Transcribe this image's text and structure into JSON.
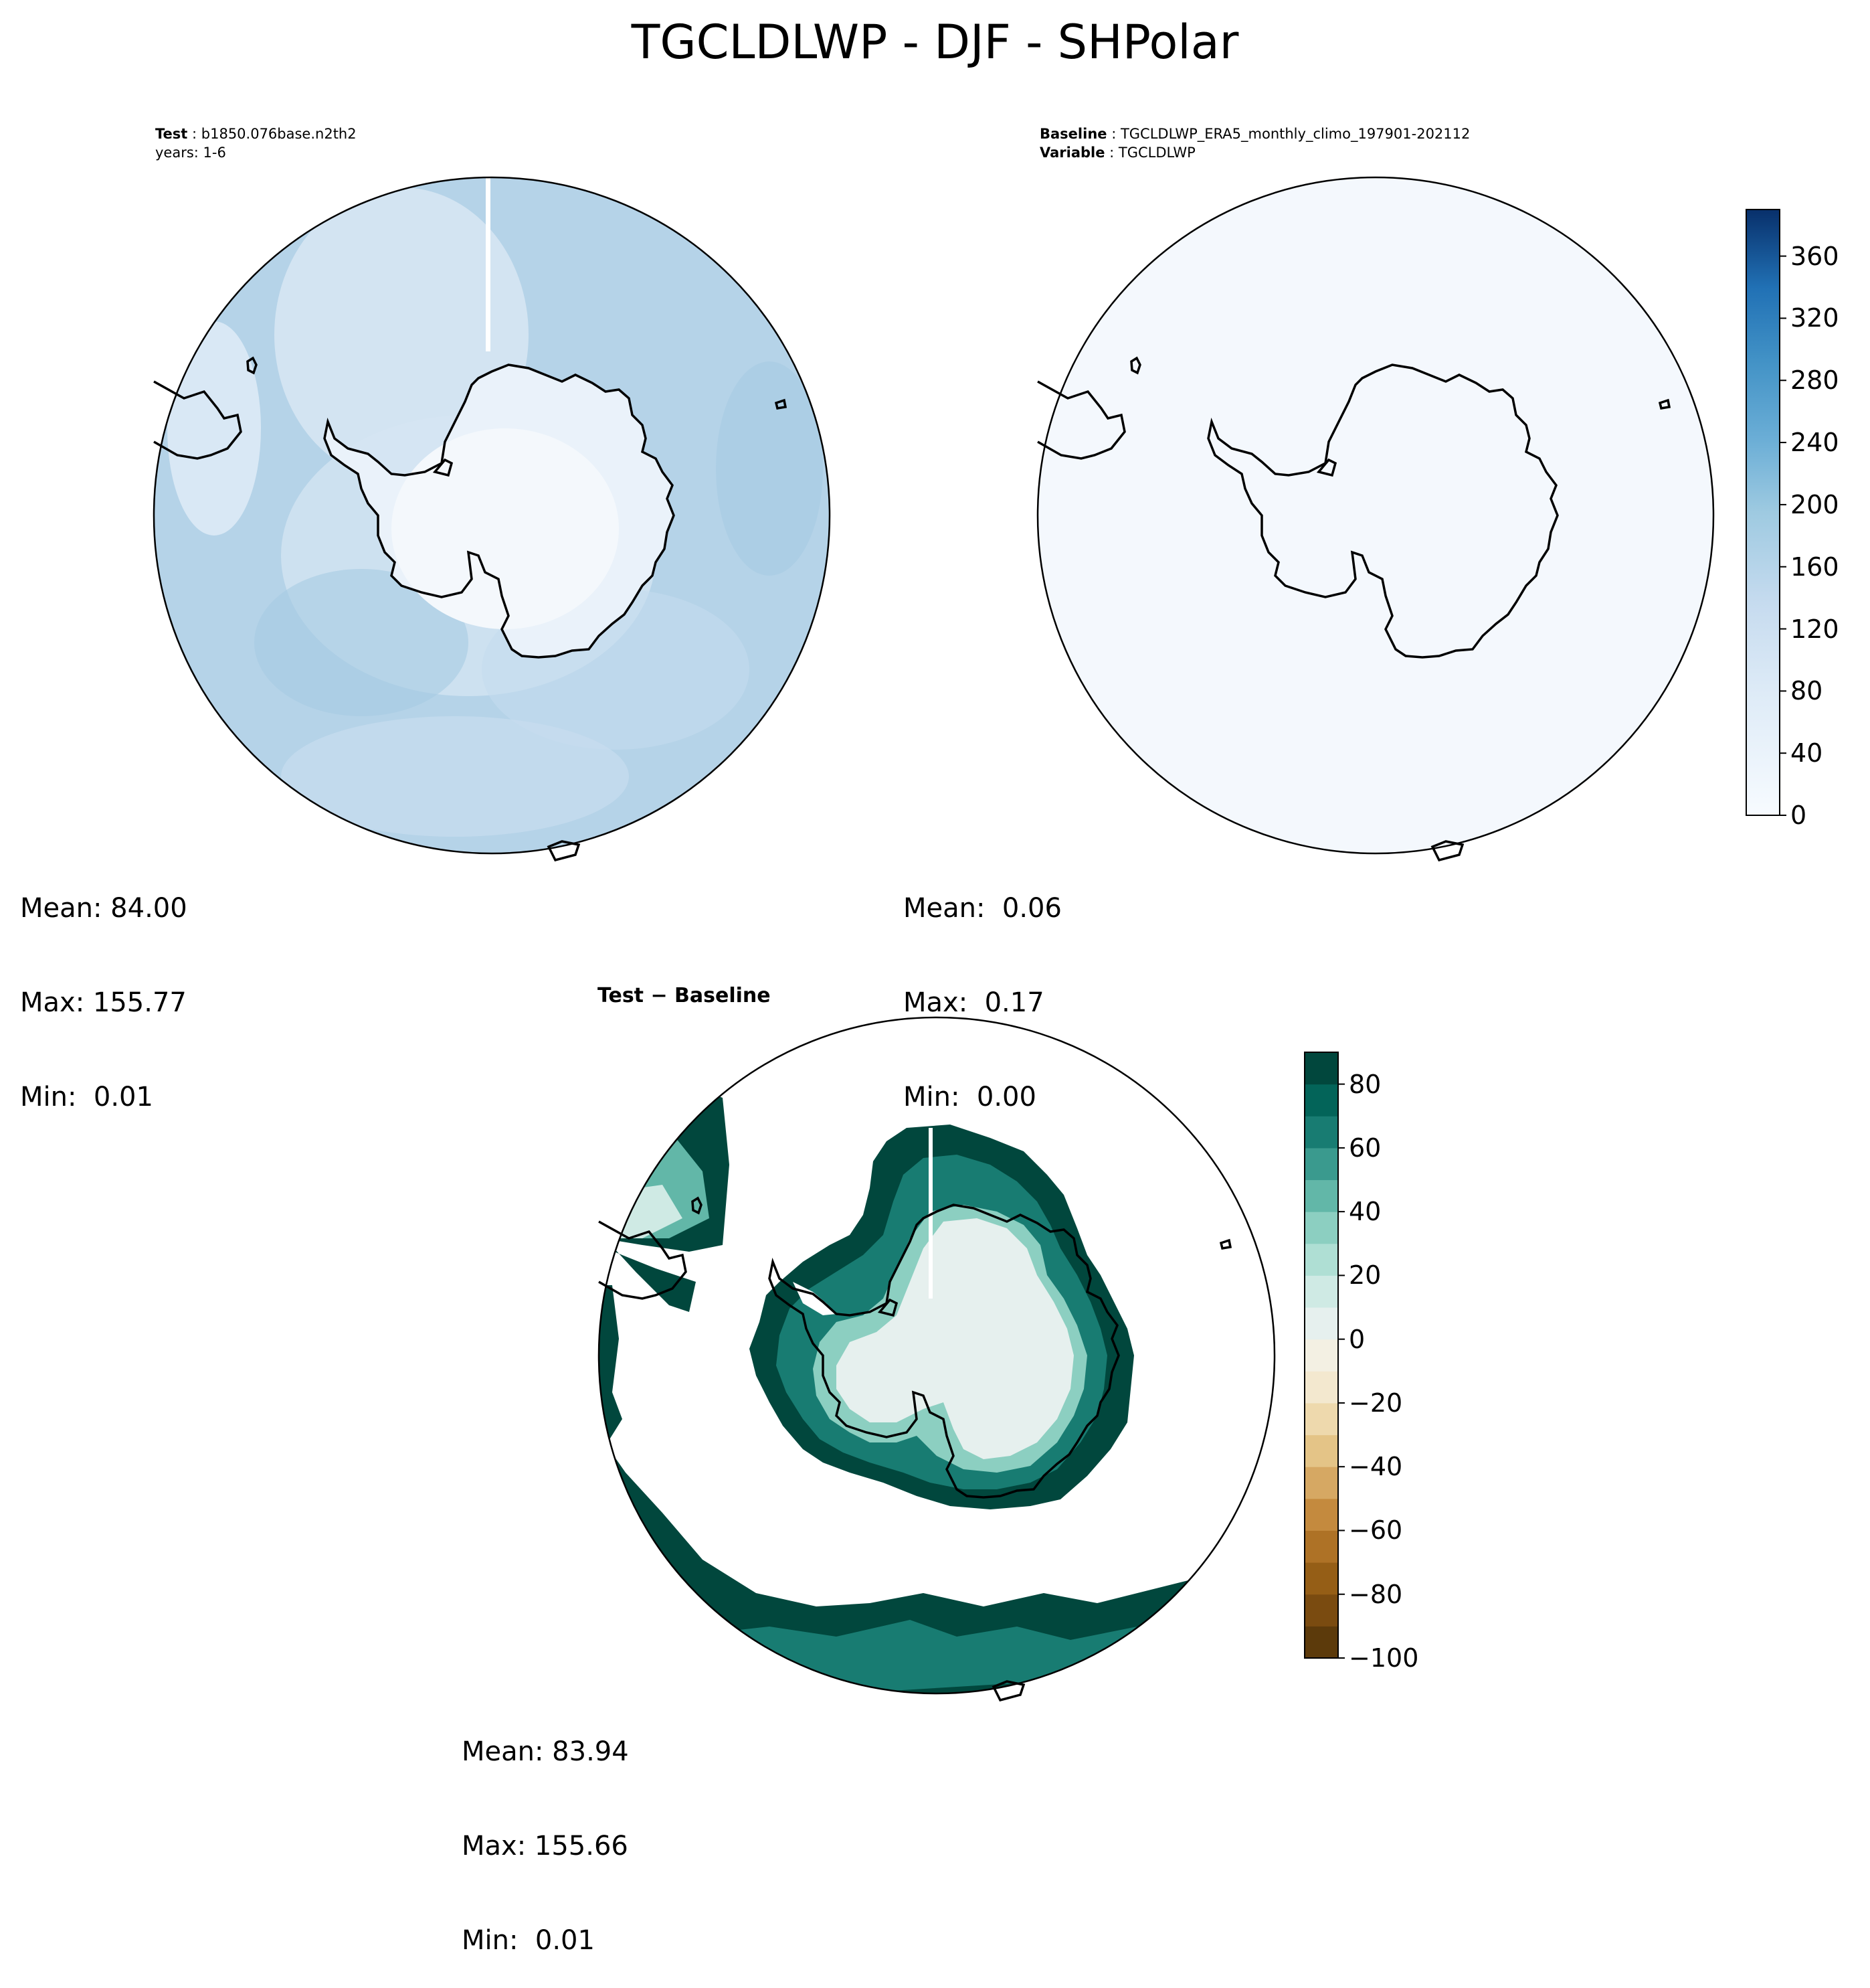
{
  "title": "TGCLDLWP - DJF - SHPolar",
  "test_panel": {
    "label_key": "Test",
    "label_value": "b1850.076base.n2th2",
    "years": "years: 1-6",
    "stats": {
      "mean": "Mean: 84.00",
      "max": "Max: 155.77",
      "min": "Min:  0.01"
    }
  },
  "baseline_panel": {
    "label_key": "Baseline",
    "label_value": "TGCLDLWP_ERA5_monthly_climo_197901-202112",
    "variable_key": "Variable",
    "variable_value": "TGCLDLWP",
    "stats": {
      "mean": "Mean:  0.06",
      "max": "Max:  0.17",
      "min": "Min:  0.00"
    }
  },
  "diff_panel": {
    "title": "Test − Baseline",
    "stats": {
      "mean": "Mean: 83.94",
      "max": "Max: 155.66",
      "min": "Min:  0.01"
    }
  },
  "chart_data": [
    {
      "type": "heatmap",
      "panel": "test",
      "projection": "south polar stereographic",
      "stats": {
        "mean": 84.0,
        "max": 155.77,
        "min": 0.01
      },
      "colormap": "Blues",
      "colorbar_ticks": [
        "0",
        "40",
        "80",
        "120",
        "160",
        "200",
        "240",
        "280",
        "320",
        "360"
      ],
      "colorbar_range": [
        0,
        390
      ]
    },
    {
      "type": "heatmap",
      "panel": "baseline",
      "projection": "south polar stereographic",
      "stats": {
        "mean": 0.06,
        "max": 0.17,
        "min": 0.0
      },
      "colormap": "Blues",
      "colorbar_ticks": [
        "0",
        "40",
        "80",
        "120",
        "160",
        "200",
        "240",
        "280",
        "320",
        "360"
      ],
      "colorbar_range": [
        0,
        390
      ]
    },
    {
      "type": "heatmap",
      "panel": "difference",
      "projection": "south polar stereographic",
      "stats": {
        "mean": 83.94,
        "max": 155.66,
        "min": 0.01
      },
      "colormap": "BrBG",
      "colorbar_ticks": [
        "−100",
        "−80",
        "−60",
        "−40",
        "−20",
        "0",
        "20",
        "40",
        "60",
        "80"
      ],
      "colorbar_range": [
        -100,
        90
      ],
      "colorbar_colors": [
        "#5c3a0b",
        "#7a4b10",
        "#955e16",
        "#ae7226",
        "#c48a3e",
        "#d6a863",
        "#e4c487",
        "#eed9ad",
        "#f3e8cf",
        "#f3f0e3",
        "#e6f0ee",
        "#cfeae4",
        "#afdfd4",
        "#8ccfc1",
        "#62b7a8",
        "#3a9a8e",
        "#187c72",
        "#036459",
        "#01473d"
      ]
    }
  ]
}
